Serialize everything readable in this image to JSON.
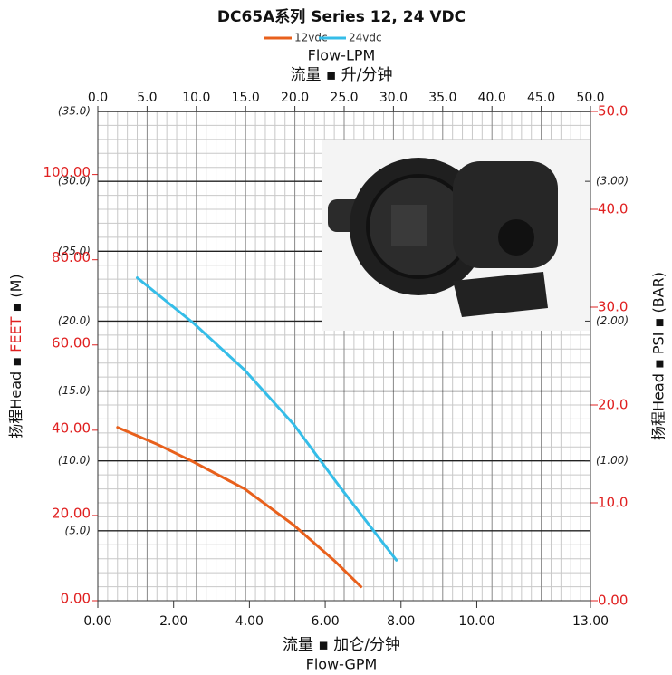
{
  "chart_data": {
    "type": "line",
    "title": "DC65A系列 Series 12, 24 VDC",
    "xlabel": "Flow-LPM",
    "xlabel_cn": "流量 ▪ 升/分钟",
    "x2label_cn": "流量 ▪ 加仑/分钟",
    "x2label": "Flow-GPM",
    "ylabel_parts": [
      "扬程Head ▪ ",
      "FEET",
      " ▪ (M)"
    ],
    "y2label": "扬程Head ▪ PSI ▪ (BAR)",
    "xlim": [
      0,
      50
    ],
    "xticks": [
      {
        "value": 0,
        "label": "0.0"
      },
      {
        "value": 5,
        "label": "5.0"
      },
      {
        "value": 10,
        "label": "10.0"
      },
      {
        "value": 15,
        "label": "15.0"
      },
      {
        "value": 20,
        "label": "20.0"
      },
      {
        "value": 25,
        "label": "25.0"
      },
      {
        "value": 30,
        "label": "30.0"
      },
      {
        "value": 35,
        "label": "35.0"
      },
      {
        "value": 40,
        "label": "40.0"
      },
      {
        "value": 45,
        "label": "45.0"
      },
      {
        "value": 50,
        "label": "50.0"
      }
    ],
    "x2lim": [
      0,
      13
    ],
    "x2ticks": [
      {
        "value": 0,
        "label": "0.00"
      },
      {
        "value": 2,
        "label": "2.00"
      },
      {
        "value": 4,
        "label": "4.00"
      },
      {
        "value": 6,
        "label": "6.00"
      },
      {
        "value": 8,
        "label": "8.00"
      },
      {
        "value": 10,
        "label": "10.00"
      },
      {
        "value": 13,
        "label": "13.00"
      }
    ],
    "ylim": [
      0,
      35
    ],
    "yticks": [
      {
        "value": 5,
        "label": "(5.0)"
      },
      {
        "value": 10,
        "label": "(10.0)"
      },
      {
        "value": 15,
        "label": "(15.0)"
      },
      {
        "value": 20,
        "label": "(20.0)"
      },
      {
        "value": 25,
        "label": "(25.0)"
      },
      {
        "value": 30,
        "label": "(30.0)"
      },
      {
        "value": 35,
        "label": "(35.0)"
      }
    ],
    "feet_lim": [
      0,
      114.8
    ],
    "feet_ticks": [
      {
        "value": 0,
        "label": "0.00"
      },
      {
        "value": 20,
        "label": "20.00"
      },
      {
        "value": 40,
        "label": "40.00"
      },
      {
        "value": 60,
        "label": "60.00"
      },
      {
        "value": 80,
        "label": "80.00"
      },
      {
        "value": 100,
        "label": "100.00"
      }
    ],
    "y2lim": [
      0,
      50
    ],
    "y2ticks": [
      {
        "value": 0,
        "label": "0.00"
      },
      {
        "value": 10,
        "label": "10.0"
      },
      {
        "value": 20,
        "label": "20.0"
      },
      {
        "value": 30,
        "label": "30.0"
      },
      {
        "value": 40,
        "label": "40.0"
      },
      {
        "value": 50,
        "label": "50.0"
      }
    ],
    "bar_lim": [
      0,
      3.5
    ],
    "bar_ticks": [
      {
        "value": 1,
        "label": "(1.00)"
      },
      {
        "value": 2,
        "label": "(2.00)"
      },
      {
        "value": 3,
        "label": "(3.00)"
      }
    ],
    "grid": true,
    "series": [
      {
        "name": "12vdc",
        "color": "#e8601c",
        "x": [
          2.0,
          6,
          9.8,
          14.9,
          19.9,
          24.1,
          26.7
        ],
        "values": [
          12.4,
          11.2,
          9.9,
          8.0,
          5.4,
          2.8,
          1.0
        ]
      },
      {
        "name": "24vdc",
        "color": "#35bde8",
        "x": [
          4.0,
          9.8,
          14.9,
          19.9,
          24.5,
          28,
          30.3
        ],
        "values": [
          23.1,
          19.8,
          16.5,
          12.6,
          8.2,
          5.0,
          2.9
        ]
      }
    ]
  }
}
